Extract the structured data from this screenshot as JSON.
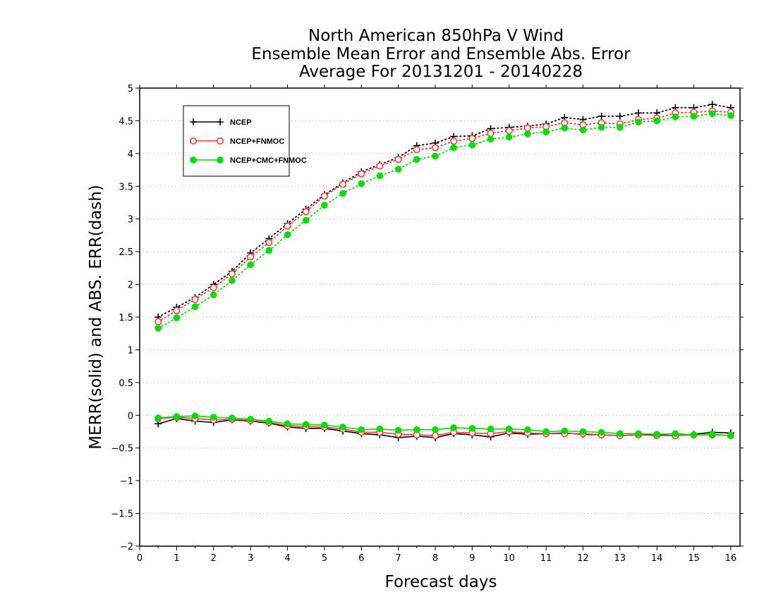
{
  "chart_data": {
    "type": "line",
    "title_lines": [
      "North American 850hPa V Wind",
      "Ensemble Mean Error and Ensemble Abs. Error",
      "Average For 20131201 - 20140228"
    ],
    "xlabel": "Forecast days",
    "ylabel": "MERR(solid) and ABS. ERR(dash)",
    "xlim": [
      0,
      16.25
    ],
    "ylim": [
      -2,
      5
    ],
    "x_ticks": [
      "0",
      "1",
      "2",
      "3",
      "4",
      "5",
      "6",
      "7",
      "8",
      "9",
      "10",
      "11",
      "12",
      "13",
      "14",
      "15",
      "16"
    ],
    "y_ticks": [
      "−2",
      "−1.5",
      "−1",
      "−0.5",
      "0",
      "0.5",
      "1",
      "1.5",
      "2",
      "2.5",
      "3",
      "3.5",
      "4",
      "4.5",
      "5"
    ],
    "y_tick_values": [
      -2,
      -1.5,
      -1,
      -0.5,
      0,
      0.5,
      1,
      1.5,
      2,
      2.5,
      3,
      3.5,
      4,
      4.5,
      5
    ],
    "grid": "horizontal dotted",
    "legend_position": "top-left",
    "x": [
      0.5,
      1,
      1.5,
      2,
      2.5,
      3,
      3.5,
      4,
      4.5,
      5,
      5.5,
      6,
      6.5,
      7,
      7.5,
      8,
      8.5,
      9,
      9.5,
      10,
      10.5,
      11,
      11.5,
      12,
      12.5,
      13,
      13.5,
      14,
      14.5,
      15,
      15.5,
      16
    ],
    "series": [
      {
        "name": "NCEP",
        "color": "#000000",
        "marker": "plus",
        "abs_err": [
          1.5,
          1.65,
          1.8,
          2.0,
          2.2,
          2.48,
          2.7,
          2.93,
          3.15,
          3.37,
          3.55,
          3.72,
          3.83,
          3.94,
          4.12,
          4.16,
          4.26,
          4.27,
          4.38,
          4.4,
          4.42,
          4.45,
          4.55,
          4.52,
          4.57,
          4.57,
          4.62,
          4.62,
          4.7,
          4.7,
          4.75,
          4.7
        ],
        "mean_err": [
          -0.13,
          -0.05,
          -0.09,
          -0.11,
          -0.07,
          -0.09,
          -0.12,
          -0.18,
          -0.2,
          -0.2,
          -0.24,
          -0.28,
          -0.3,
          -0.34,
          -0.32,
          -0.34,
          -0.28,
          -0.3,
          -0.33,
          -0.27,
          -0.29,
          -0.28,
          -0.27,
          -0.29,
          -0.3,
          -0.31,
          -0.3,
          -0.3,
          -0.31,
          -0.29,
          -0.26,
          -0.27
        ]
      },
      {
        "name": "NCEP+FNMOC",
        "color": "#ff3333",
        "marker": "open-circle",
        "abs_err": [
          1.43,
          1.6,
          1.77,
          1.95,
          2.16,
          2.42,
          2.64,
          2.89,
          3.11,
          3.35,
          3.53,
          3.69,
          3.81,
          3.91,
          4.06,
          4.09,
          4.19,
          4.23,
          4.31,
          4.35,
          4.39,
          4.41,
          4.47,
          4.44,
          4.47,
          4.45,
          4.52,
          4.54,
          4.62,
          4.63,
          4.65,
          4.63
        ],
        "mean_err": [
          -0.05,
          -0.03,
          -0.05,
          -0.07,
          -0.06,
          -0.08,
          -0.11,
          -0.16,
          -0.17,
          -0.18,
          -0.21,
          -0.26,
          -0.26,
          -0.29,
          -0.3,
          -0.31,
          -0.26,
          -0.27,
          -0.28,
          -0.25,
          -0.27,
          -0.28,
          -0.28,
          -0.28,
          -0.3,
          -0.31,
          -0.3,
          -0.31,
          -0.31,
          -0.3,
          -0.3,
          -0.31
        ]
      },
      {
        "name": "NCEP+CMC+FNMOC",
        "color": "#00dd00",
        "marker": "filled-circle",
        "abs_err": [
          1.33,
          1.49,
          1.66,
          1.84,
          2.06,
          2.3,
          2.52,
          2.76,
          2.98,
          3.21,
          3.39,
          3.54,
          3.66,
          3.76,
          3.91,
          3.96,
          4.09,
          4.13,
          4.22,
          4.25,
          4.3,
          4.33,
          4.39,
          4.36,
          4.4,
          4.4,
          4.48,
          4.5,
          4.56,
          4.57,
          4.61,
          4.58
        ],
        "mean_err": [
          -0.04,
          -0.02,
          -0.01,
          -0.03,
          -0.04,
          -0.06,
          -0.09,
          -0.13,
          -0.14,
          -0.15,
          -0.18,
          -0.22,
          -0.21,
          -0.23,
          -0.22,
          -0.22,
          -0.19,
          -0.2,
          -0.21,
          -0.21,
          -0.22,
          -0.25,
          -0.24,
          -0.25,
          -0.26,
          -0.28,
          -0.28,
          -0.29,
          -0.28,
          -0.3,
          -0.29,
          -0.31
        ]
      }
    ]
  }
}
